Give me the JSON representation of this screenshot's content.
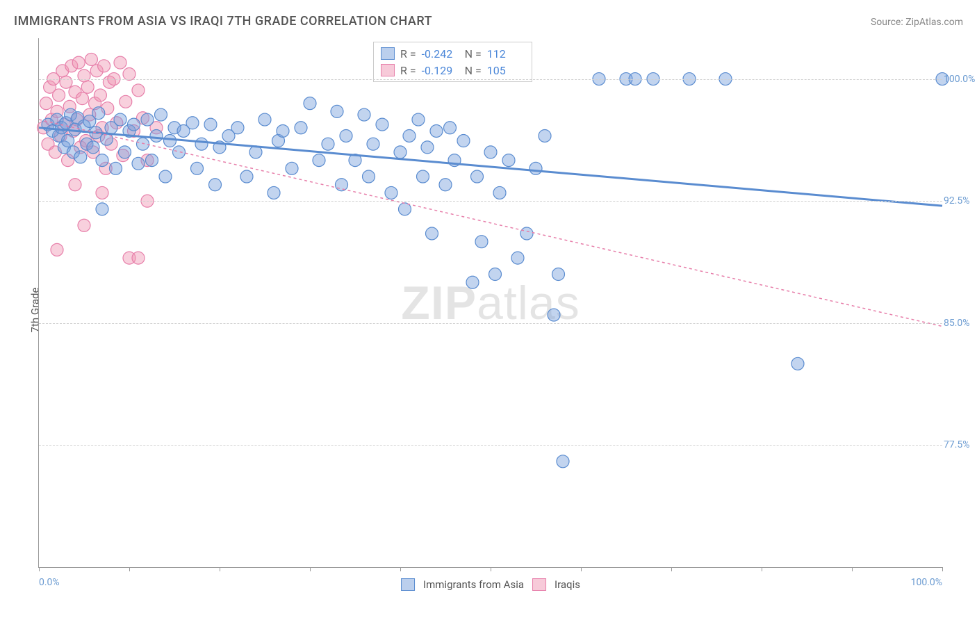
{
  "title": "IMMIGRANTS FROM ASIA VS IRAQI 7TH GRADE CORRELATION CHART",
  "source_label": "Source: ",
  "source_name": "ZipAtlas.com",
  "y_axis_label": "7th Grade",
  "watermark_bold": "ZIP",
  "watermark_rest": "atlas",
  "chart": {
    "xlim": [
      0,
      100
    ],
    "ylim": [
      70,
      102.5
    ],
    "yticks": [
      77.5,
      85.0,
      92.5,
      100.0
    ],
    "ytick_labels": [
      "77.5%",
      "85.0%",
      "92.5%",
      "100.0%"
    ],
    "xticks": [
      0,
      10,
      20,
      30,
      40,
      50,
      60,
      70,
      80,
      90,
      100
    ],
    "xtick_labels_left": "0.0%",
    "xtick_labels_right": "100.0%",
    "background_color": "#ffffff",
    "grid_color": "#d0d0d0",
    "series": [
      {
        "name": "Immigrants from Asia",
        "color_fill": "rgba(120,160,220,0.45)",
        "color_stroke": "#5a8cd0",
        "marker_r": 9,
        "line_dash": "",
        "line_width": 3,
        "R": "-0.242",
        "N": "112",
        "trend": {
          "x0": 0,
          "y0": 97.0,
          "x1": 100,
          "y1": 92.2
        },
        "points": [
          [
            1,
            97.2
          ],
          [
            1.5,
            96.8
          ],
          [
            2,
            97.5
          ],
          [
            2.2,
            96.5
          ],
          [
            2.5,
            97.0
          ],
          [
            2.8,
            95.8
          ],
          [
            3,
            97.3
          ],
          [
            3.2,
            96.2
          ],
          [
            3.5,
            97.8
          ],
          [
            3.8,
            95.5
          ],
          [
            4,
            96.9
          ],
          [
            4.3,
            97.6
          ],
          [
            4.6,
            95.2
          ],
          [
            5,
            97.1
          ],
          [
            5.3,
            96.0
          ],
          [
            5.6,
            97.4
          ],
          [
            6,
            95.8
          ],
          [
            6.3,
            96.7
          ],
          [
            6.6,
            97.9
          ],
          [
            7,
            95.0
          ],
          [
            7,
            92.0
          ],
          [
            7.5,
            96.3
          ],
          [
            8,
            97.0
          ],
          [
            8.5,
            94.5
          ],
          [
            9,
            97.5
          ],
          [
            9.5,
            95.5
          ],
          [
            10,
            96.8
          ],
          [
            10.5,
            97.2
          ],
          [
            11,
            94.8
          ],
          [
            11.5,
            96.0
          ],
          [
            12,
            97.5
          ],
          [
            12.5,
            95.0
          ],
          [
            13,
            96.5
          ],
          [
            13.5,
            97.8
          ],
          [
            14,
            94.0
          ],
          [
            14.5,
            96.2
          ],
          [
            15,
            97.0
          ],
          [
            15.5,
            95.5
          ],
          [
            16,
            96.8
          ],
          [
            17,
            97.3
          ],
          [
            17.5,
            94.5
          ],
          [
            18,
            96.0
          ],
          [
            19,
            97.2
          ],
          [
            19.5,
            93.5
          ],
          [
            20,
            95.8
          ],
          [
            21,
            96.5
          ],
          [
            22,
            97.0
          ],
          [
            23,
            94.0
          ],
          [
            24,
            95.5
          ],
          [
            25,
            97.5
          ],
          [
            26,
            93.0
          ],
          [
            26.5,
            96.2
          ],
          [
            27,
            96.8
          ],
          [
            28,
            94.5
          ],
          [
            29,
            97.0
          ],
          [
            30,
            98.5
          ],
          [
            31,
            95.0
          ],
          [
            32,
            96.0
          ],
          [
            33,
            98.0
          ],
          [
            33.5,
            93.5
          ],
          [
            34,
            96.5
          ],
          [
            35,
            95.0
          ],
          [
            36,
            97.8
          ],
          [
            36.5,
            94.0
          ],
          [
            37,
            96.0
          ],
          [
            38,
            97.2
          ],
          [
            39,
            93.0
          ],
          [
            40,
            95.5
          ],
          [
            40.5,
            92.0
          ],
          [
            41,
            96.5
          ],
          [
            42,
            97.5
          ],
          [
            42.5,
            94.0
          ],
          [
            43,
            95.8
          ],
          [
            43.5,
            90.5
          ],
          [
            44,
            96.8
          ],
          [
            45,
            93.5
          ],
          [
            45.5,
            97.0
          ],
          [
            46,
            95.0
          ],
          [
            47,
            96.2
          ],
          [
            48,
            87.5
          ],
          [
            48.5,
            94.0
          ],
          [
            49,
            90.0
          ],
          [
            50,
            95.5
          ],
          [
            50.5,
            88.0
          ],
          [
            51,
            93.0
          ],
          [
            52,
            95.0
          ],
          [
            53,
            89.0
          ],
          [
            54,
            90.5
          ],
          [
            55,
            94.5
          ],
          [
            56,
            96.5
          ],
          [
            57,
            85.5
          ],
          [
            57.5,
            88.0
          ],
          [
            58,
            76.5
          ],
          [
            62,
            100.0
          ],
          [
            65,
            100.0
          ],
          [
            66,
            100.0
          ],
          [
            68,
            100.0
          ],
          [
            72,
            100.0
          ],
          [
            76,
            100.0
          ],
          [
            84,
            82.5
          ],
          [
            100,
            100.0
          ]
        ]
      },
      {
        "name": "Iraqis",
        "color_fill": "rgba(240,150,180,0.45)",
        "color_stroke": "#e77faa",
        "marker_r": 9,
        "line_dash": "4 4",
        "line_width": 1.5,
        "R": "-0.129",
        "N": "105",
        "trend": {
          "x0": 0,
          "y0": 97.5,
          "x1": 100,
          "y1": 84.8
        },
        "points": [
          [
            0.5,
            97.0
          ],
          [
            0.8,
            98.5
          ],
          [
            1,
            96.0
          ],
          [
            1.2,
            99.5
          ],
          [
            1.4,
            97.5
          ],
          [
            1.6,
            100.0
          ],
          [
            1.8,
            95.5
          ],
          [
            2,
            98.0
          ],
          [
            2.2,
            99.0
          ],
          [
            2.4,
            96.5
          ],
          [
            2.6,
            100.5
          ],
          [
            2.8,
            97.2
          ],
          [
            3,
            99.8
          ],
          [
            3.2,
            95.0
          ],
          [
            3.4,
            98.3
          ],
          [
            3.6,
            100.8
          ],
          [
            3.8,
            96.8
          ],
          [
            4,
            99.2
          ],
          [
            4.2,
            97.5
          ],
          [
            4.4,
            101.0
          ],
          [
            4.6,
            95.8
          ],
          [
            4.8,
            98.8
          ],
          [
            5,
            100.2
          ],
          [
            5.2,
            96.2
          ],
          [
            5.4,
            99.5
          ],
          [
            5.6,
            97.8
          ],
          [
            5.8,
            101.2
          ],
          [
            6,
            95.5
          ],
          [
            6.2,
            98.5
          ],
          [
            6.4,
            100.5
          ],
          [
            6.6,
            96.5
          ],
          [
            6.8,
            99.0
          ],
          [
            7,
            97.0
          ],
          [
            7.2,
            100.8
          ],
          [
            7.4,
            94.5
          ],
          [
            7.6,
            98.2
          ],
          [
            7.8,
            99.8
          ],
          [
            8,
            96.0
          ],
          [
            8.3,
            100.0
          ],
          [
            8.6,
            97.3
          ],
          [
            9,
            101.0
          ],
          [
            9.3,
            95.3
          ],
          [
            9.6,
            98.6
          ],
          [
            10,
            100.3
          ],
          [
            10.5,
            96.8
          ],
          [
            11,
            99.3
          ],
          [
            11.5,
            97.6
          ],
          [
            12,
            95.0
          ],
          [
            13,
            97.0
          ],
          [
            2,
            89.5
          ],
          [
            4,
            93.5
          ],
          [
            5,
            91.0
          ],
          [
            7,
            93.0
          ],
          [
            10,
            89.0
          ],
          [
            11,
            89.0
          ],
          [
            12,
            92.5
          ]
        ]
      }
    ]
  },
  "legend_bottom": {
    "s1": "Immigrants from Asia",
    "s2": "Iraqis"
  },
  "legend_top_labels": {
    "R": "R =",
    "N": "N ="
  }
}
